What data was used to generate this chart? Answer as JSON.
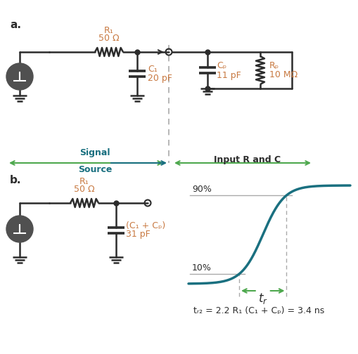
{
  "bg_color": "#ffffff",
  "line_color": "#2c2c2c",
  "teal_color": "#1a7080",
  "green_color": "#4ea84e",
  "orange_color": "#c87941",
  "label_a": "a.",
  "label_b": "b.",
  "r1_label": "R₁",
  "r1_val": "50 Ω",
  "c1_label": "C₁",
  "c1_val": "20 pF",
  "cp_label": "Cₚ",
  "cp_val": "11 pF",
  "rp_label": "Rₚ",
  "rp_val": "10 MΩ",
  "sig_source_line1": "Signal",
  "sig_source_line2": "Source",
  "input_rc": "Input R and C",
  "c1cp_label": "(C₁ + Cₚ)",
  "c1cp_val": "31 pF",
  "tr_formula": "tᵣ₂ = 2.2 R₁ (C₁ + Cₚ) = 3.4 ns",
  "pct_90": "90%",
  "pct_10": "10%",
  "tr_label": "tᵣ"
}
